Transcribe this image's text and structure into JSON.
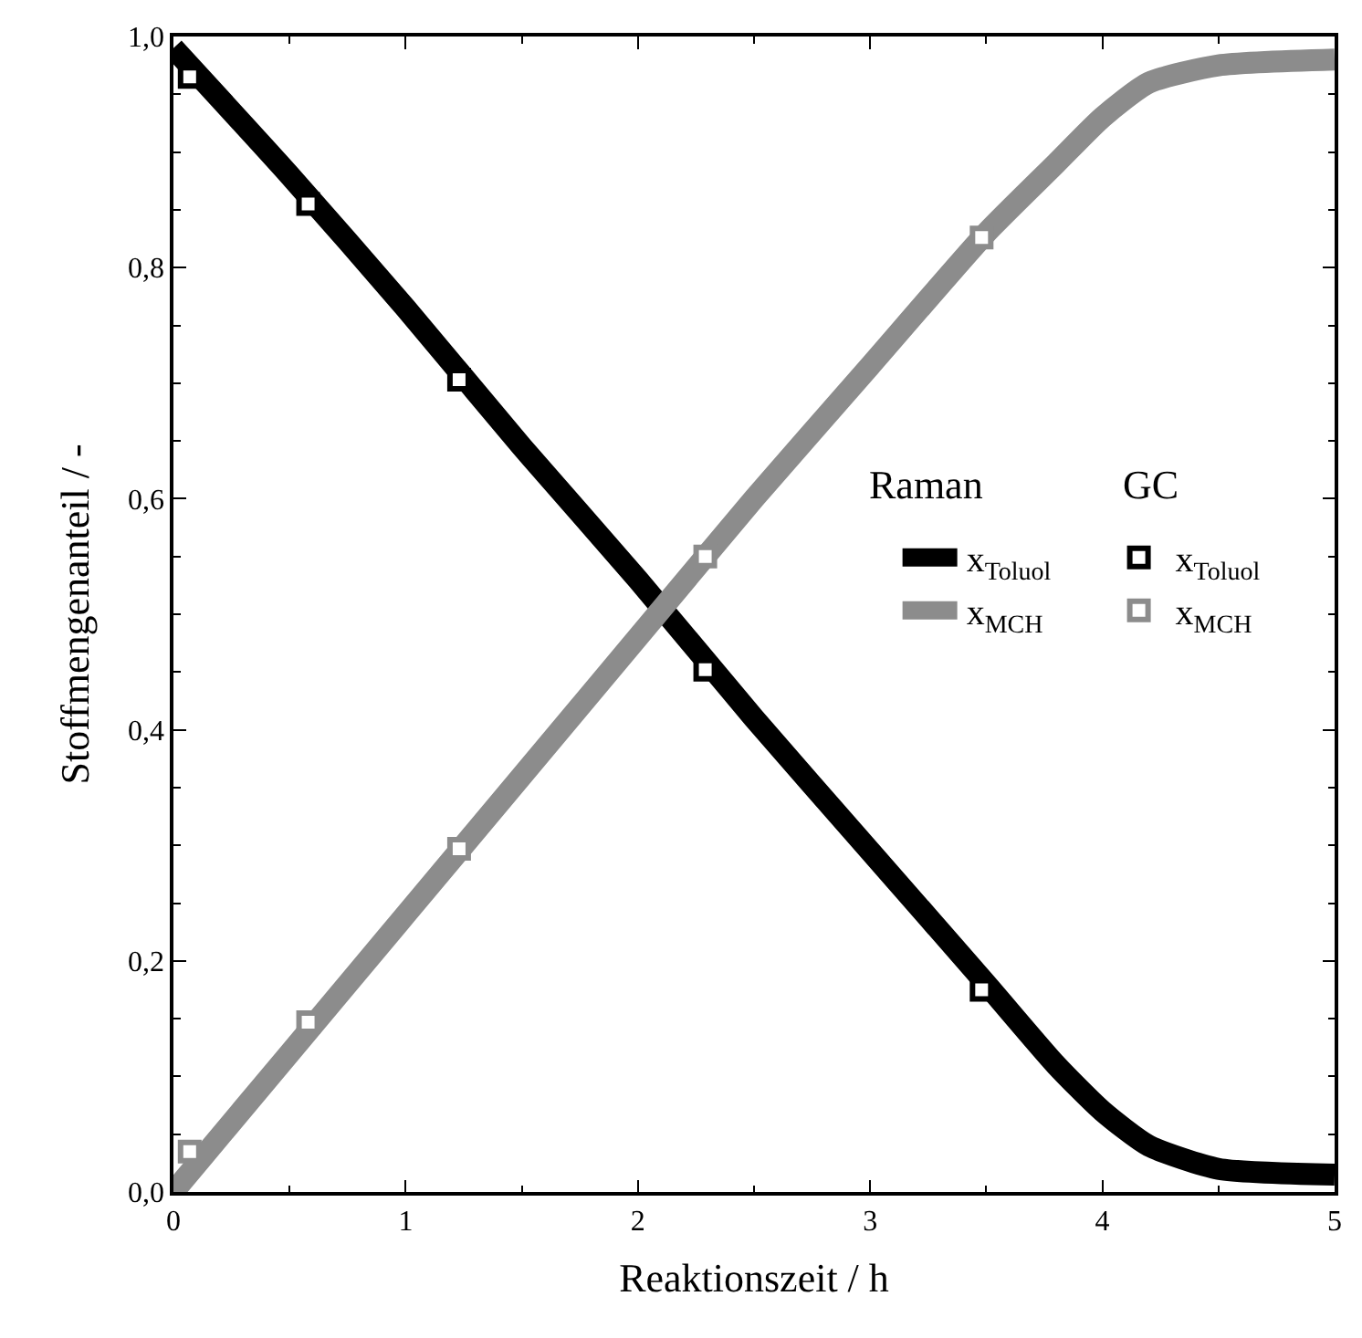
{
  "chart_data": {
    "type": "line",
    "xlabel": "Reaktionszeit / h",
    "ylabel": "Stoffmengenanteil / -",
    "annotations": [
      "Raman",
      "GC"
    ],
    "legend": "right",
    "xlim": [
      0,
      5
    ],
    "xticks": [
      0,
      1,
      2,
      3,
      4,
      5
    ],
    "ylim": [
      0,
      1
    ],
    "yticks": [
      {
        "value": 0,
        "label": "0,0"
      },
      {
        "value": 0.2,
        "label": "0,2"
      },
      {
        "value": 0.4,
        "label": "0,4"
      },
      {
        "value": 0.6,
        "label": "0,6"
      },
      {
        "value": 0.8,
        "label": "0,8"
      },
      {
        "value": 1,
        "label": "1,0"
      }
    ],
    "series": [
      {
        "name": "x$_{Toluol}$",
        "marker": "none",
        "color": "#000000",
        "x": [
          0,
          0.5,
          1,
          1.5,
          2,
          2.5,
          3,
          3.5,
          3.8,
          4,
          4.2,
          4.5,
          5
        ],
        "values": [
          0.99,
          0.88,
          0.765,
          0.645,
          0.53,
          0.41,
          0.295,
          0.18,
          0.11,
          0.07,
          0.04,
          0.02,
          0.015
        ]
      },
      {
        "name": "x$_{MCH}$",
        "marker": "none",
        "color": "#8c8c8c",
        "x": [
          0,
          0.5,
          1,
          1.5,
          2,
          2.5,
          3,
          3.5,
          3.8,
          4,
          4.2,
          4.5,
          5
        ],
        "values": [
          0.0,
          0.12,
          0.24,
          0.36,
          0.48,
          0.6,
          0.715,
          0.83,
          0.89,
          0.93,
          0.96,
          0.975,
          0.98
        ]
      },
      {
        "name": "x$_{Toluol}$",
        "type": "scatter",
        "marker": "square",
        "color": "#000000",
        "x": [
          0.07,
          0.58,
          1.23,
          2.29,
          3.48
        ],
        "values": [
          0.965,
          0.855,
          0.703,
          0.452,
          0.175
        ]
      },
      {
        "name": "x$_{MCH}$",
        "type": "scatter",
        "marker": "square",
        "color": "#8c8c8c",
        "x": [
          0.07,
          0.58,
          1.23,
          2.29,
          3.48
        ],
        "values": [
          0.035,
          0.147,
          0.297,
          0.55,
          0.826
        ]
      }
    ]
  }
}
